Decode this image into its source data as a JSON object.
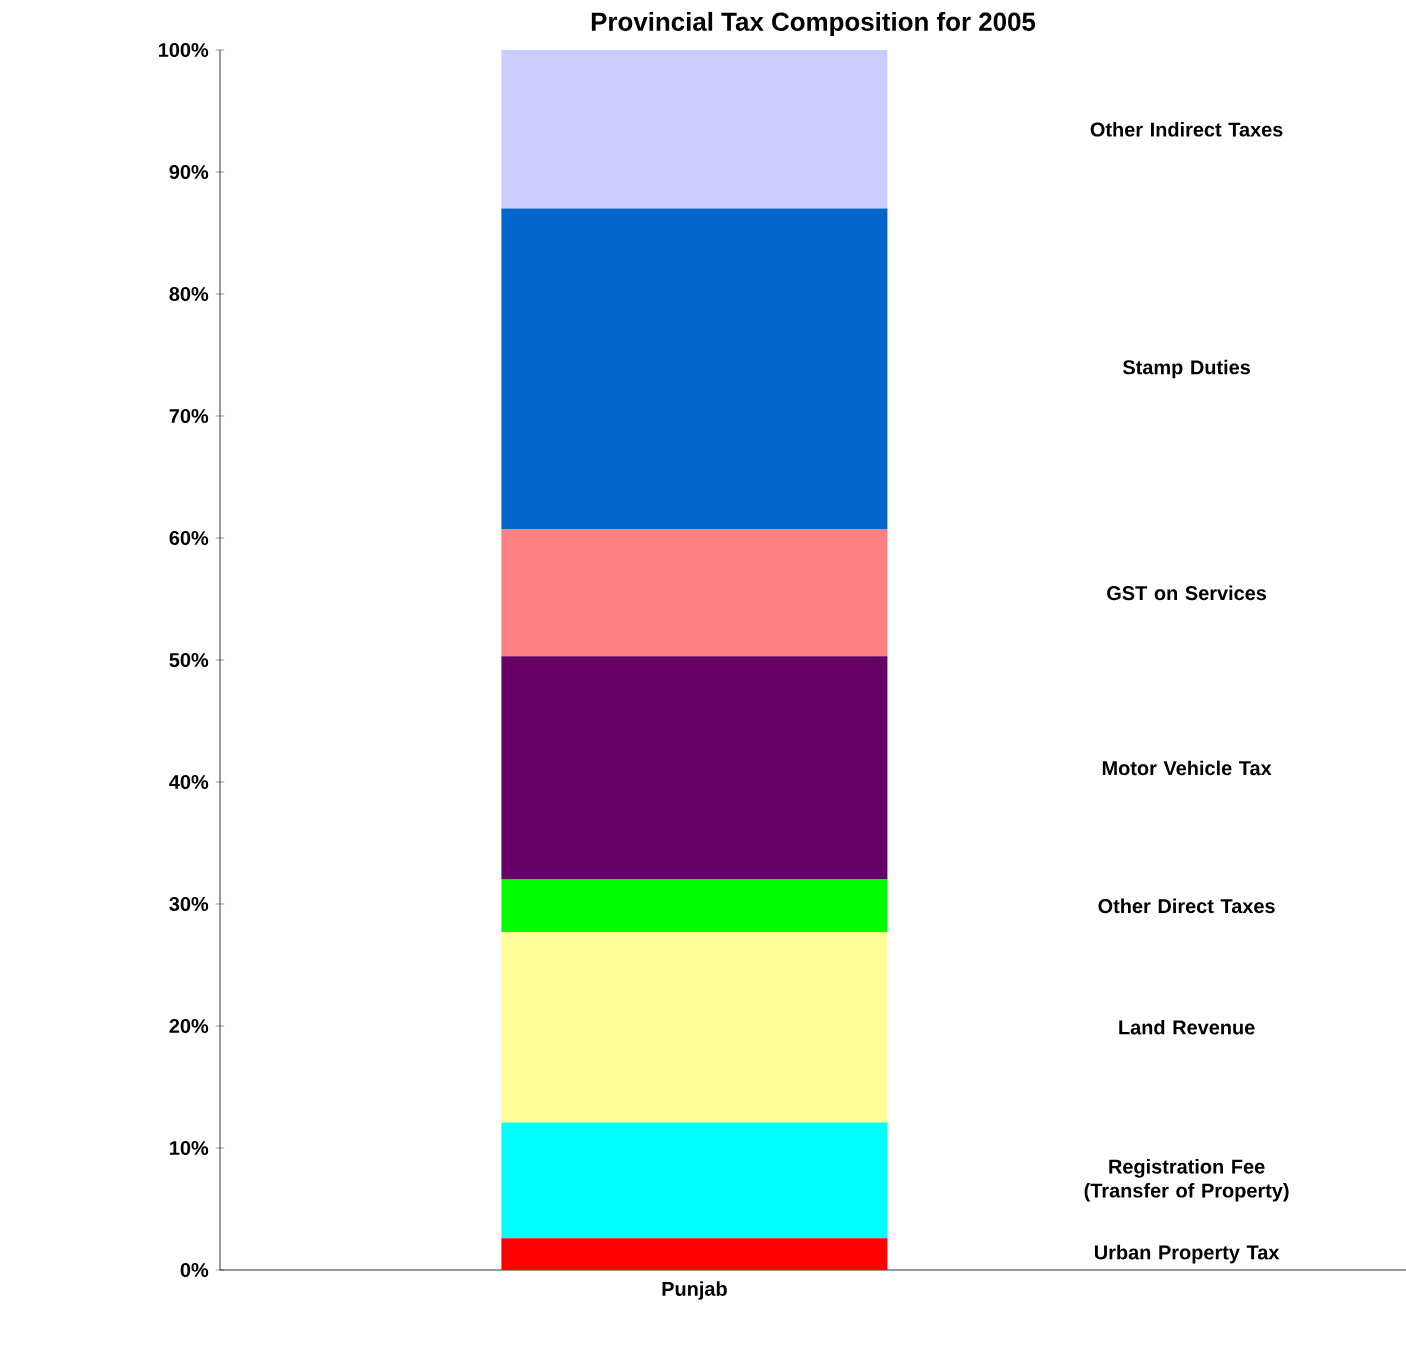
{
  "chart_data": {
    "type": "bar",
    "stacked": true,
    "title": "Provincial Tax Composition for 2005",
    "categories": [
      "Punjab"
    ],
    "series": [
      {
        "name": "Urban Property Tax",
        "color": "#ff0000",
        "values": [
          2.6
        ]
      },
      {
        "name": "Registration Fee (Transfer of Property)",
        "color": "#00ffff",
        "values": [
          9.5
        ]
      },
      {
        "name": "Land Revenue",
        "color": "#ffff99",
        "values": [
          15.6
        ]
      },
      {
        "name": "Other Direct Taxes",
        "color": "#00ff00",
        "values": [
          4.3
        ]
      },
      {
        "name": "Motor Vehicle Tax",
        "color": "#660066",
        "values": [
          18.3
        ]
      },
      {
        "name": "GST on Services",
        "color": "#ff8080",
        "values": [
          10.4
        ]
      },
      {
        "name": "Stamp Duties",
        "color": "#0066cc",
        "values": [
          26.3
        ]
      },
      {
        "name": "Other Indirect Taxes",
        "color": "#ccccff",
        "values": [
          13.0
        ]
      }
    ],
    "ylim": [
      0,
      100
    ],
    "yticks": [
      {
        "value": 0,
        "label": "0%"
      },
      {
        "value": 10,
        "label": "10%"
      },
      {
        "value": 20,
        "label": "20%"
      },
      {
        "value": 30,
        "label": "30%"
      },
      {
        "value": 40,
        "label": "40%"
      },
      {
        "value": 50,
        "label": "50%"
      },
      {
        "value": 60,
        "label": "60%"
      },
      {
        "value": 70,
        "label": "70%"
      },
      {
        "value": 80,
        "label": "80%"
      },
      {
        "value": 90,
        "label": "90%"
      },
      {
        "value": 100,
        "label": "100%"
      }
    ],
    "grid": false
  }
}
